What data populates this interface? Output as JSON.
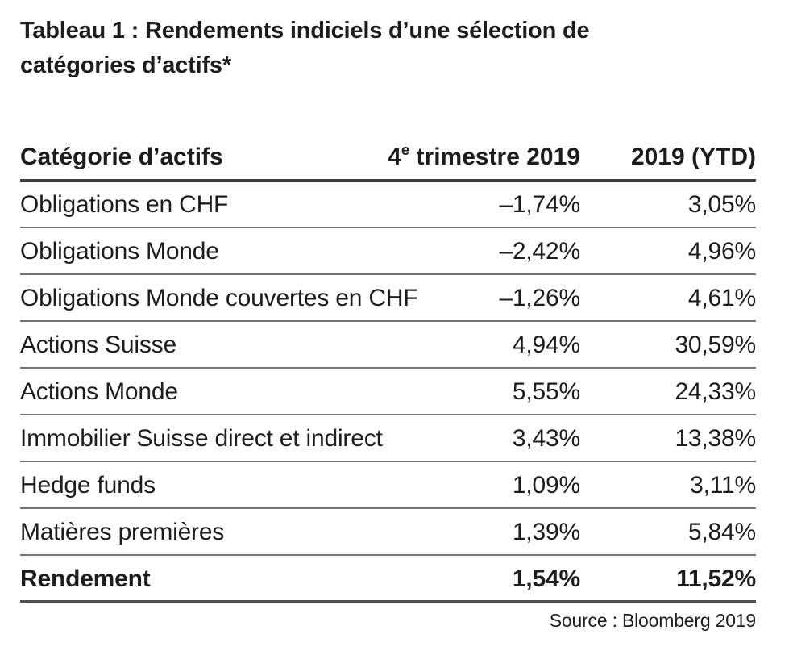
{
  "title_lines": [
    "Tableau 1 : Rendements indiciels d’une sélection de",
    "catégories d’actifs*"
  ],
  "table": {
    "header": {
      "col1": "Catégorie d’actifs",
      "col2_base": "4",
      "col2_sup": "e",
      "col2_rest": " trimestre 2019",
      "col3": "2019 (YTD)"
    },
    "rows": [
      {
        "label": "Obligations en CHF",
        "q4": "–1,74%",
        "ytd": "3,05%"
      },
      {
        "label": "Obligations Monde",
        "q4": "–2,42%",
        "ytd": "4,96%"
      },
      {
        "label": "Obligations Monde couvertes en CHF",
        "q4": "–1,26%",
        "ytd": "4,61%"
      },
      {
        "label": "Actions Suisse",
        "q4": "4,94%",
        "ytd": "30,59%"
      },
      {
        "label": "Actions Monde",
        "q4": "5,55%",
        "ytd": "24,33%"
      },
      {
        "label": "Immobilier Suisse direct et indirect",
        "q4": "3,43%",
        "ytd": "13,38%"
      },
      {
        "label": "Hedge funds",
        "q4": "1,09%",
        "ytd": "3,11%"
      },
      {
        "label": "Matières premières",
        "q4": "1,39%",
        "ytd": "5,84%"
      },
      {
        "label": "Rendement",
        "q4": "1,54%",
        "ytd": "11,52%"
      }
    ]
  },
  "footer": {
    "source": "Source : Bloomberg 2019"
  },
  "colors": {
    "text": "#1d1d1b",
    "rule_header": "#3e3e3e",
    "rule_row": "#747474",
    "rule_bottom": "#4d4d4d",
    "background": "#ffffff"
  },
  "chart_data": {
    "type": "table",
    "title": "Tableau 1 : Rendements indiciels d’une sélection de catégories d’actifs*",
    "columns": [
      "Catégorie d’actifs",
      "4e trimestre 2019",
      "2019 (YTD)"
    ],
    "rows": [
      [
        "Obligations en CHF",
        -1.74,
        3.05
      ],
      [
        "Obligations Monde",
        -2.42,
        4.96
      ],
      [
        "Obligations Monde couvertes en CHF",
        -1.26,
        4.61
      ],
      [
        "Actions Suisse",
        4.94,
        30.59
      ],
      [
        "Actions Monde",
        5.55,
        24.33
      ],
      [
        "Immobilier Suisse direct et indirect",
        3.43,
        13.38
      ],
      [
        "Hedge funds",
        1.09,
        3.11
      ],
      [
        "Matières premières",
        1.39,
        5.84
      ],
      [
        "Rendement",
        1.54,
        11.52
      ]
    ],
    "units": "percent",
    "source": "Source : Bloomberg 2019"
  }
}
